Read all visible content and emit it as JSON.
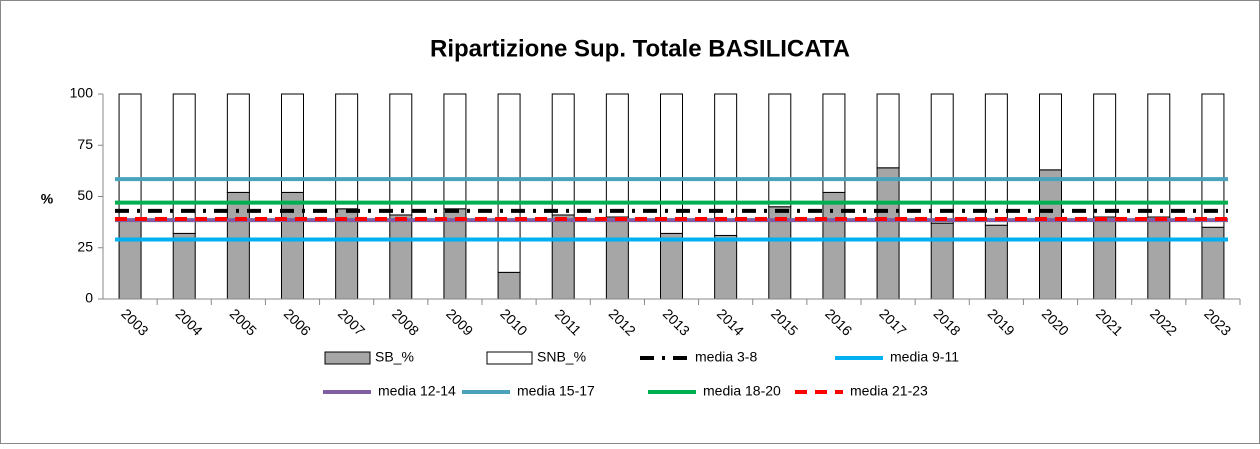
{
  "chart_data": {
    "type": "stacked-bar",
    "title": "Ripartizione Sup. Totale BASILICATA",
    "ylabel": "%",
    "categories": [
      "2003",
      "2004",
      "2005",
      "2006",
      "2007",
      "2008",
      "2009",
      "2010",
      "2011",
      "2012",
      "2013",
      "2014",
      "2015",
      "2016",
      "2017",
      "2018",
      "2019",
      "2020",
      "2021",
      "2022",
      "2023"
    ],
    "series": [
      {
        "name": "SB_%",
        "color": "#a6a6a6",
        "values": [
          38,
          32,
          52,
          52,
          44,
          41,
          44,
          13,
          41,
          40,
          32,
          31,
          45,
          52,
          64,
          37,
          36,
          63,
          40,
          40,
          35
        ]
      },
      {
        "name": "SNB_%",
        "color": "#ffffff",
        "values": [
          62,
          68,
          48,
          48,
          56,
          59,
          56,
          87,
          59,
          60,
          68,
          69,
          55,
          48,
          36,
          63,
          64,
          37,
          60,
          60,
          65
        ]
      }
    ],
    "lines": [
      {
        "name": "media 3-8",
        "color": "#000000",
        "value": 43,
        "dash": "dash-dot"
      },
      {
        "name": "media 9-11",
        "color": "#00b0f0",
        "value": 29,
        "dash": "solid"
      },
      {
        "name": "media 12-14",
        "color": "#7f5fa0",
        "value": 38.5,
        "dash": "solid"
      },
      {
        "name": "media 15-17",
        "color": "#4aa3bd",
        "value": 58.5,
        "dash": "solid"
      },
      {
        "name": "media 18-20",
        "color": "#00b050",
        "value": 47,
        "dash": "solid"
      },
      {
        "name": "media 21-23",
        "color": "#ff0000",
        "value": 39,
        "dash": "dash"
      }
    ],
    "ylim": [
      0,
      100
    ],
    "yticks": [
      0,
      25,
      50,
      75,
      100
    ]
  }
}
